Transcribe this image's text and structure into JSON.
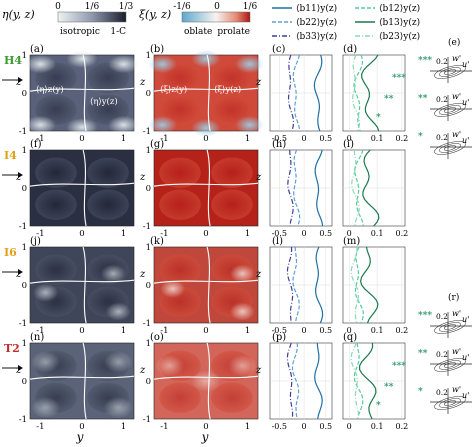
{
  "colorbar_eta": {
    "label": "η(y, z)",
    "ticks": [
      "0",
      "1/6",
      "1/3"
    ],
    "end_labels": [
      "isotropic",
      "1-C"
    ],
    "colors": [
      "#e4ecef",
      "#98a2b6",
      "#1e2231"
    ]
  },
  "colorbar_xi": {
    "label": "ξ(y, z)",
    "ticks": [
      "-1/6",
      "0",
      "1/6"
    ],
    "end_labels": [
      "oblate",
      "prolate"
    ],
    "colors": [
      "#8fc3da",
      "#f6f2ee",
      "#e39a86",
      "#b51f1a"
    ]
  },
  "legend": {
    "items": [
      {
        "label": "⟨b11⟩y(z)",
        "color": "#1f6fa3",
        "dash": "solid"
      },
      {
        "label": "⟨b22⟩y(z)",
        "color": "#5aa0d6",
        "dash": "dashed"
      },
      {
        "label": "⟨b33⟩y(z)",
        "color": "#3d3d9a",
        "dash": "dashdot"
      },
      {
        "label": "⟨b12⟩y(z)",
        "color": "#58c9a1",
        "dash": "dashed"
      },
      {
        "label": "⟨b13⟩y(z)",
        "color": "#1a7a4a",
        "dash": "solid"
      },
      {
        "label": "⟨b23⟩y(z)",
        "color": "#8ad8b6",
        "dash": "dashdot"
      }
    ]
  },
  "rows": [
    {
      "case": "H4",
      "case_color": "#3a9a2e",
      "labels": [
        "(a)",
        "(b)",
        "(c)",
        "(d)"
      ]
    },
    {
      "case": "I4",
      "case_color": "#e0a016",
      "labels": [
        "(f)",
        "(g)",
        "(h)",
        "(i)"
      ]
    },
    {
      "case": "I6",
      "case_color": "#e0a016",
      "labels": [
        "(j)",
        "(k)",
        "(l)",
        "(m)"
      ]
    },
    {
      "case": "T2",
      "case_color": "#c62b2b",
      "labels": [
        "(n)",
        "(o)",
        "(p)",
        "(q)"
      ]
    }
  ],
  "panel_a_annotations": [
    "⟨η⟩z(y)",
    "⟨η⟩y(z)"
  ],
  "panel_b_annotations": [
    "⟨ξ⟩z(y)",
    "⟨ξ⟩y(z)"
  ],
  "axes": {
    "map_xticks": [
      "-1",
      "0",
      "1"
    ],
    "map_yticks": [
      "1",
      "0",
      "-1"
    ],
    "map_xlabel": "y",
    "map_ylabel": "z",
    "c_xticks": [
      "-0.5",
      "0",
      "0.5"
    ],
    "d_xticks": [
      "0",
      "0.1",
      "0.2"
    ]
  },
  "stars": {
    "row0": [
      "***",
      "**",
      "*"
    ],
    "row3": [
      "***",
      "**",
      "*"
    ]
  },
  "quadrant_panels": [
    {
      "label": "(e)",
      "axis_labels": [
        "w'",
        "u'"
      ],
      "tick": "0.2",
      "markers": [
        "***",
        "**",
        "*"
      ]
    },
    {
      "label": "(r)",
      "axis_labels": [
        "w'",
        "u'"
      ],
      "tick": "0.2",
      "markers": [
        "***",
        "**",
        "*"
      ]
    }
  ],
  "star_color": "#2f9a6a"
}
